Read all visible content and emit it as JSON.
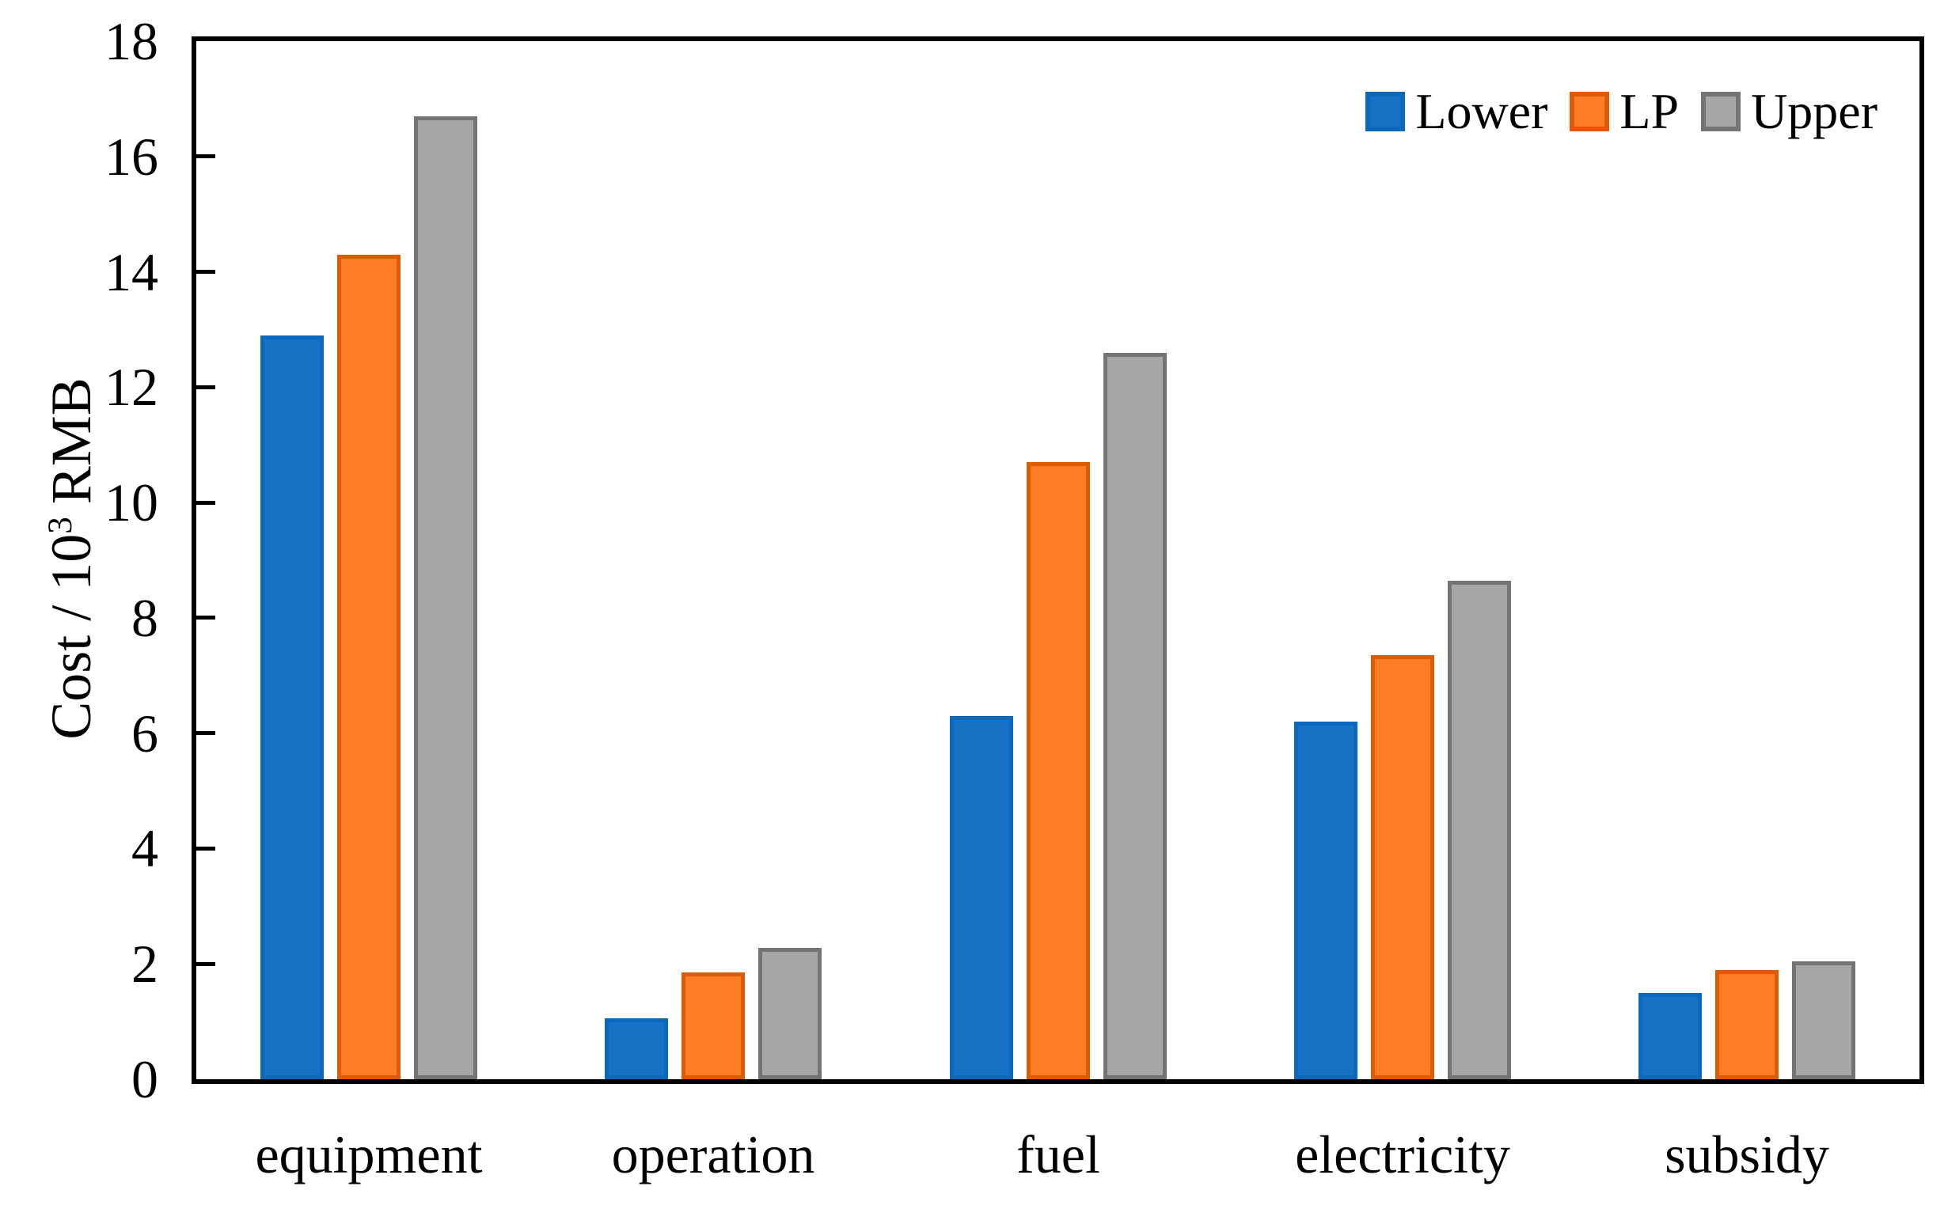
{
  "chart_data": {
    "type": "bar",
    "title": "",
    "xlabel": "",
    "ylabel": "Cost / 10^3 RMB",
    "ylim": [
      0,
      18
    ],
    "y_tick_step": 2,
    "grid": false,
    "legend_position": "top-right-inside",
    "categories": [
      "equipment",
      "operation",
      "fuel",
      "electricity",
      "subsidy"
    ],
    "series": [
      {
        "name": "Lower",
        "fill": "#1772C6",
        "border": "#0A69BD",
        "values": [
          12.9,
          1.05,
          6.3,
          6.2,
          1.5
        ]
      },
      {
        "name": "LP",
        "fill": "#FC7D24",
        "border": "#DD5C03",
        "values": [
          14.3,
          1.85,
          10.7,
          7.35,
          1.9
        ]
      },
      {
        "name": "Upper",
        "fill": "#A7A7A7",
        "border": "#747474",
        "values": [
          16.7,
          2.28,
          12.6,
          8.65,
          2.05
        ]
      }
    ]
  },
  "y_axis": {
    "title_prefix": "Cost / 10",
    "title_sup": "3",
    "title_suffix": "RMB",
    "ticks": [
      "0",
      "2",
      "4",
      "6",
      "8",
      "10",
      "12",
      "14",
      "16",
      "18"
    ]
  },
  "colors": {
    "axis": "#000000",
    "background": "#FFFFFF"
  }
}
